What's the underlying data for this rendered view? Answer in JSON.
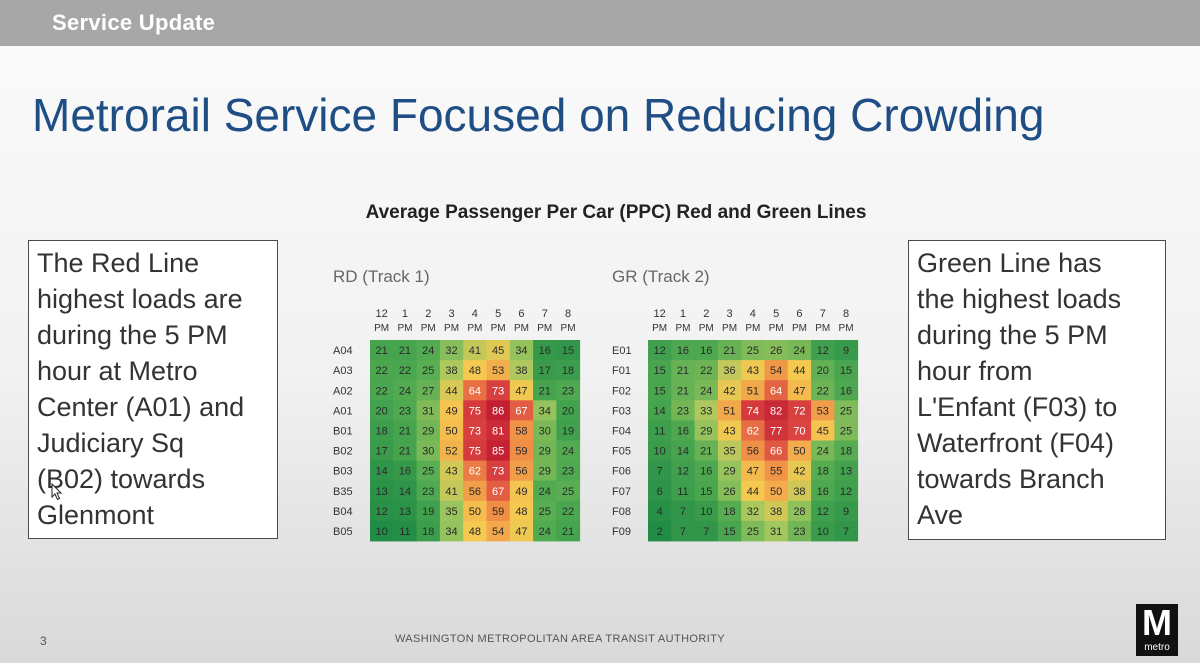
{
  "header": {
    "label": "Service Update"
  },
  "slide": {
    "title": "Metrorail Service Focused on Reducing Crowding",
    "chart_title": "Average Passenger Per Car (PPC) Red and Green Lines",
    "left_callout": [
      "The Red Line",
      "highest loads are",
      "during the 5 PM",
      "hour at Metro",
      "Center (A01) and",
      "Judiciary Sq",
      "(B02) towards",
      "Glenmont"
    ],
    "right_callout": [
      "Green Line has",
      "the highest loads",
      "during the 5 PM",
      "hour from",
      "L'Enfant (F03)  to",
      "Waterfront (F04)",
      "towards Branch",
      "Ave"
    ],
    "page_number": "3",
    "organization": "WASHINGTON METROPOLITAN AREA TRANSIT AUTHORITY",
    "logo_letter": "M",
    "logo_word": "metro"
  },
  "chart_data": [
    {
      "type": "heatmap",
      "title": "RD (Track 1)",
      "columns": [
        [
          "12",
          "PM"
        ],
        [
          "1",
          "PM"
        ],
        [
          "2",
          "PM"
        ],
        [
          "3",
          "PM"
        ],
        [
          "4",
          "PM"
        ],
        [
          "5",
          "PM"
        ],
        [
          "6",
          "PM"
        ],
        [
          "7",
          "PM"
        ],
        [
          "8",
          "PM"
        ]
      ],
      "rows": [
        "A04",
        "A03",
        "A02",
        "A01",
        "B01",
        "B02",
        "B03",
        "B35",
        "B04",
        "B05"
      ],
      "values": [
        [
          21,
          21,
          24,
          32,
          41,
          45,
          34,
          16,
          15
        ],
        [
          22,
          22,
          25,
          38,
          48,
          53,
          38,
          17,
          18
        ],
        [
          22,
          24,
          27,
          44,
          64,
          73,
          47,
          21,
          23
        ],
        [
          20,
          23,
          31,
          49,
          75,
          86,
          67,
          34,
          20
        ],
        [
          18,
          21,
          29,
          50,
          73,
          81,
          58,
          30,
          19
        ],
        [
          17,
          21,
          30,
          52,
          75,
          85,
          59,
          29,
          24
        ],
        [
          14,
          16,
          25,
          43,
          62,
          73,
          56,
          29,
          23
        ],
        [
          13,
          14,
          23,
          41,
          56,
          67,
          49,
          24,
          25
        ],
        [
          12,
          13,
          19,
          35,
          50,
          59,
          48,
          25,
          22
        ],
        [
          10,
          11,
          18,
          34,
          48,
          54,
          47,
          24,
          21
        ]
      ],
      "scale": [
        10,
        86
      ]
    },
    {
      "type": "heatmap",
      "title": "GR (Track 2)",
      "columns": [
        [
          "12",
          "PM"
        ],
        [
          "1",
          "PM"
        ],
        [
          "2",
          "PM"
        ],
        [
          "3",
          "PM"
        ],
        [
          "4",
          "PM"
        ],
        [
          "5",
          "PM"
        ],
        [
          "6",
          "PM"
        ],
        [
          "7",
          "PM"
        ],
        [
          "8",
          "PM"
        ]
      ],
      "rows": [
        "E01",
        "F01",
        "F02",
        "F03",
        "F04",
        "F05",
        "F06",
        "F07",
        "F08",
        "F09"
      ],
      "values": [
        [
          12,
          16,
          16,
          21,
          25,
          26,
          24,
          12,
          9
        ],
        [
          15,
          21,
          22,
          36,
          43,
          54,
          44,
          20,
          15
        ],
        [
          15,
          21,
          24,
          42,
          51,
          64,
          47,
          22,
          16
        ],
        [
          14,
          23,
          33,
          51,
          74,
          82,
          72,
          53,
          25
        ],
        [
          11,
          16,
          29,
          43,
          62,
          77,
          70,
          45,
          25
        ],
        [
          10,
          14,
          21,
          35,
          56,
          66,
          50,
          24,
          18
        ],
        [
          7,
          12,
          16,
          29,
          47,
          55,
          42,
          18,
          13
        ],
        [
          6,
          11,
          15,
          26,
          44,
          50,
          38,
          16,
          12
        ],
        [
          4,
          7,
          10,
          18,
          32,
          38,
          28,
          12,
          9
        ],
        [
          2,
          7,
          7,
          15,
          25,
          31,
          23,
          10,
          7
        ]
      ],
      "scale": [
        2,
        86
      ]
    }
  ]
}
